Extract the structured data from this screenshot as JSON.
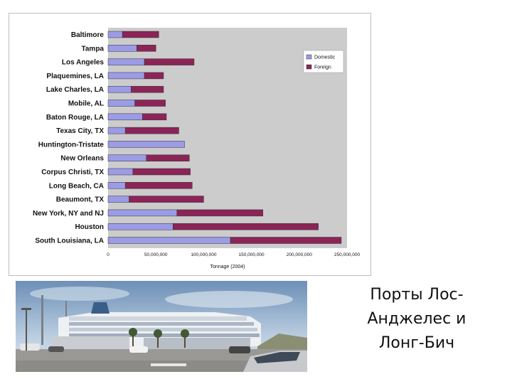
{
  "chart_data": {
    "type": "bar",
    "orientation": "horizontal",
    "stacked": true,
    "categories": [
      "Baltimore",
      "Tampa",
      "Los Angeles",
      "Plaquemines, LA",
      "Lake Charles, LA",
      "Mobile, AL",
      "Baton Rouge, LA",
      "Texas City, TX",
      "Huntington-Tristate",
      "New Orleans",
      "Corpus Christi, TX",
      "Long Beach, CA",
      "Beaumont, TX",
      "New York, NY and NJ",
      "Houston",
      "South Louisiana, LA"
    ],
    "series": [
      {
        "name": "Domestic",
        "color": "#9b9be6",
        "values": [
          15000000,
          30000000,
          38000000,
          38000000,
          24000000,
          28000000,
          36000000,
          18000000,
          80000000,
          40000000,
          26000000,
          18000000,
          22000000,
          72000000,
          68000000,
          128000000
        ]
      },
      {
        "name": "Foreign",
        "color": "#8b2457",
        "values": [
          38000000,
          20000000,
          52000000,
          20000000,
          34000000,
          32000000,
          25000000,
          56000000,
          0,
          45000000,
          60000000,
          70000000,
          78000000,
          90000000,
          152000000,
          116000000
        ]
      }
    ],
    "xlabel": "Tonnage (2004)",
    "ylabel": "",
    "xlim": [
      0,
      250000000
    ],
    "xticks": [
      "0",
      "50,000,000",
      "100,000,000",
      "150,000,000",
      "200,000,000",
      "250,000,000"
    ],
    "grid": false,
    "legend_position": "right",
    "plot_background": "#cccccc"
  },
  "caption": {
    "lines": [
      "Порты Лос-",
      "Анджелес и",
      "Лонг-Бич"
    ]
  },
  "photo": {
    "subject": "cruise ship at port with parked cars"
  }
}
